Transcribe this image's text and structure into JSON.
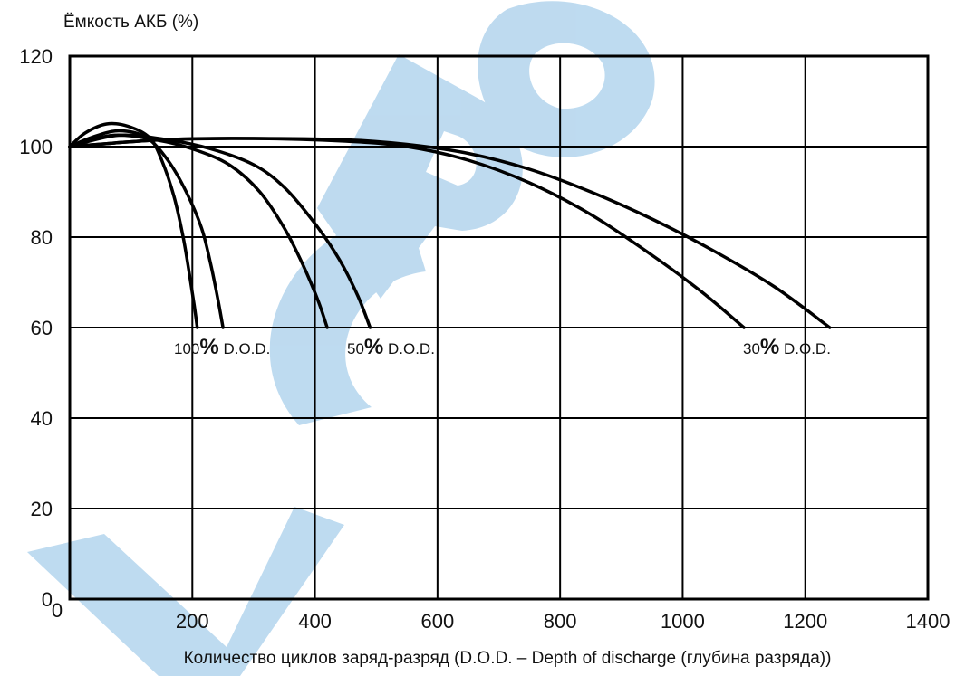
{
  "watermark": {
    "text": "VCPO",
    "color": "#b7d7ee"
  },
  "chart_data": {
    "type": "line",
    "ylabel": "Ёмкость АКБ (%)",
    "xlabel": "Количество циклов заряд-разряд (D.O.D. – Depth of discharge (глубина разряда))",
    "xlim": [
      0,
      1400
    ],
    "ylim": [
      0,
      120
    ],
    "grid": true,
    "x_ticks": [
      "0",
      "200",
      "400",
      "600",
      "800",
      "1000",
      "1200",
      "1400"
    ],
    "y_ticks": [
      "0",
      "20",
      "40",
      "60",
      "80",
      "100",
      "120"
    ],
    "line_color": "#000000",
    "series": [
      {
        "name": "100% D.O.D.",
        "label": {
          "num": "100",
          "pct": "%",
          "dod": " D.O.D."
        },
        "curves": [
          [
            [
              0,
              100
            ],
            [
              25,
              103
            ],
            [
              60,
              105
            ],
            [
              95,
              104.5
            ],
            [
              130,
              102
            ],
            [
              150,
              97
            ],
            [
              170,
              89
            ],
            [
              185,
              80
            ],
            [
              195,
              72
            ],
            [
              203,
              65
            ],
            [
              208,
              60
            ]
          ],
          [
            [
              0,
              100
            ],
            [
              35,
              102
            ],
            [
              80,
              103.5
            ],
            [
              125,
              102
            ],
            [
              160,
              97
            ],
            [
              190,
              90
            ],
            [
              215,
              82
            ],
            [
              230,
              74
            ],
            [
              242,
              66
            ],
            [
              250,
              60
            ]
          ]
        ]
      },
      {
        "name": "50% D.O.D.",
        "label": {
          "num": "50",
          "pct": "%",
          "dod": " D.O.D."
        },
        "curves": [
          [
            [
              0,
              100
            ],
            [
              70,
              102.5
            ],
            [
              140,
              101.5
            ],
            [
              200,
              99.5
            ],
            [
              260,
              96
            ],
            [
              310,
              90
            ],
            [
              350,
              82
            ],
            [
              380,
              74
            ],
            [
              405,
              66
            ],
            [
              420,
              60
            ]
          ],
          [
            [
              0,
              100
            ],
            [
              80,
              102.5
            ],
            [
              160,
              101.5
            ],
            [
              230,
              99.5
            ],
            [
              300,
              96
            ],
            [
              350,
              91
            ],
            [
              400,
              83
            ],
            [
              440,
              75
            ],
            [
              470,
              67
            ],
            [
              490,
              60
            ]
          ]
        ]
      },
      {
        "name": "30% D.O.D.",
        "label": {
          "num": "30",
          "pct": "%",
          "dod": " D.O.D."
        },
        "curves": [
          [
            [
              0,
              100
            ],
            [
              150,
              101.5
            ],
            [
              300,
              101.8
            ],
            [
              450,
              101.2
            ],
            [
              550,
              100
            ],
            [
              650,
              97
            ],
            [
              750,
              92
            ],
            [
              850,
              85
            ],
            [
              950,
              76
            ],
            [
              1030,
              68
            ],
            [
              1100,
              60
            ]
          ],
          [
            [
              0,
              100
            ],
            [
              150,
              101.5
            ],
            [
              300,
              101.8
            ],
            [
              450,
              101.5
            ],
            [
              550,
              100.5
            ],
            [
              650,
              98.5
            ],
            [
              750,
              95
            ],
            [
              850,
              90
            ],
            [
              950,
              84
            ],
            [
              1050,
              77
            ],
            [
              1150,
              69
            ],
            [
              1240,
              60
            ]
          ]
        ]
      }
    ]
  }
}
